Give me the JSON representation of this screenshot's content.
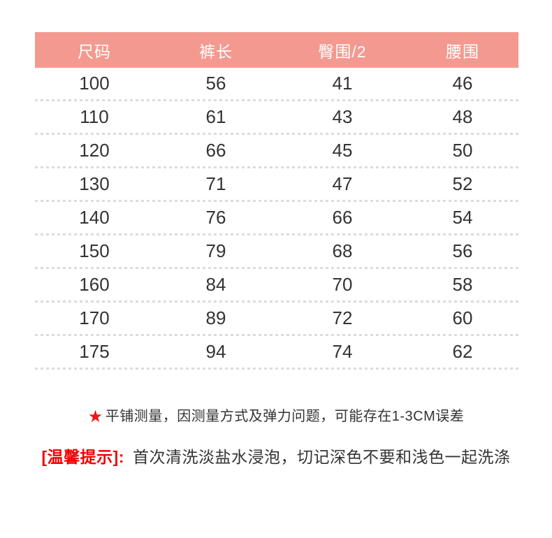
{
  "table": {
    "headers": [
      "尺码",
      "裤长",
      "臀围/2",
      "腰围"
    ],
    "rows": [
      [
        "100",
        "56",
        "41",
        "46"
      ],
      [
        "110",
        "61",
        "43",
        "48"
      ],
      [
        "120",
        "66",
        "45",
        "50"
      ],
      [
        "130",
        "71",
        "47",
        "52"
      ],
      [
        "140",
        "76",
        "66",
        "54"
      ],
      [
        "150",
        "79",
        "68",
        "56"
      ],
      [
        "160",
        "84",
        "70",
        "58"
      ],
      [
        "170",
        "89",
        "72",
        "60"
      ],
      [
        "175",
        "94",
        "74",
        "62"
      ]
    ]
  },
  "notes": {
    "star_glyph": "★",
    "measure_note": "平铺测量，因测量方式及弹力问题，可能存在1-3CM误差",
    "tip_label": "[温馨提示]:",
    "tip_text": "首次清洗淡盐水浸泡，切记深色不要和浅色一起洗涤"
  },
  "colors": {
    "header_bg": "#f4998f",
    "header_text": "#ffffff",
    "cell_text": "#333333",
    "divider": "#dcdcdc",
    "star_red": "#f01414",
    "tip_red": "#f20000"
  }
}
